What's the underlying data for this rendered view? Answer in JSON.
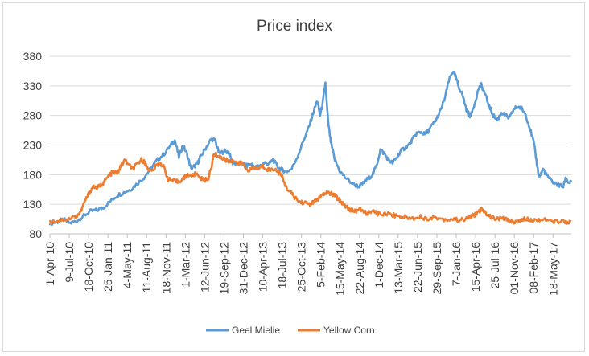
{
  "chart_data": {
    "type": "line",
    "title": "Price index",
    "xlabel": "",
    "ylabel": "",
    "ylim": [
      80,
      380
    ],
    "yticks": [
      80,
      130,
      180,
      230,
      280,
      330,
      380
    ],
    "grid": "horizontal",
    "legend_position": "bottom",
    "x_tick_labels": [
      "1-Apr-10",
      "9-Jul-10",
      "18-Oct-10",
      "25-Jan-11",
      "4-May-11",
      "11-Aug-11",
      "18-Nov-11",
      "1-Mar-12",
      "12-Jun-12",
      "19-Sep-12",
      "31-Dec-12",
      "10-Apr-13",
      "18-Jul-13",
      "25-Oct-13",
      "5-Feb-14",
      "15-May-14",
      "22-Aug-14",
      "1-Dec-14",
      "13-Mar-15",
      "22-Jun-15",
      "29-Sep-15",
      "7-Jan-16",
      "15-Apr-16",
      "25-Jul-16",
      "01-Nov-16",
      "08-Feb-17",
      "18-May-17"
    ],
    "x_end": "Sep-17",
    "series": [
      {
        "name": "Geel Mielie",
        "color": "#5b9bd5",
        "points": [
          [
            0,
            98
          ],
          [
            0.5,
            100
          ],
          [
            1,
            104
          ],
          [
            1.5,
            98
          ],
          [
            2,
            102
          ],
          [
            2.5,
            110
          ],
          [
            3,
            118
          ],
          [
            3.5,
            120
          ],
          [
            4,
            125
          ],
          [
            4.5,
            135
          ],
          [
            5,
            145
          ],
          [
            5.5,
            150
          ],
          [
            6,
            155
          ],
          [
            6.5,
            165
          ],
          [
            7,
            175
          ],
          [
            7.5,
            190
          ],
          [
            8,
            205
          ],
          [
            8.5,
            215
          ],
          [
            9,
            230
          ],
          [
            9.3,
            238
          ],
          [
            9.6,
            210
          ],
          [
            9.9,
            230
          ],
          [
            10.2,
            215
          ],
          [
            10.5,
            190
          ],
          [
            10.8,
            195
          ],
          [
            11,
            200
          ],
          [
            11.2,
            210
          ],
          [
            11.6,
            225
          ],
          [
            12,
            240
          ],
          [
            12.3,
            238
          ],
          [
            12.6,
            215
          ],
          [
            13,
            220
          ],
          [
            13.3,
            218
          ],
          [
            13.6,
            200
          ],
          [
            14,
            198
          ],
          [
            14.3,
            200
          ],
          [
            14.6,
            195
          ],
          [
            15,
            198
          ],
          [
            15.3,
            192
          ],
          [
            15.6,
            195
          ],
          [
            16,
            200
          ],
          [
            16.3,
            198
          ],
          [
            16.6,
            205
          ],
          [
            17,
            192
          ],
          [
            17.3,
            188
          ],
          [
            17.6,
            185
          ],
          [
            18,
            190
          ],
          [
            18.5,
            215
          ],
          [
            19,
            245
          ],
          [
            19.3,
            262
          ],
          [
            19.6,
            285
          ],
          [
            19.9,
            305
          ],
          [
            20.1,
            280
          ],
          [
            20.3,
            300
          ],
          [
            20.5,
            335
          ],
          [
            20.7,
            270
          ],
          [
            20.9,
            235
          ],
          [
            21.2,
            205
          ],
          [
            21.6,
            185
          ],
          [
            22,
            175
          ],
          [
            22.5,
            165
          ],
          [
            23,
            160
          ],
          [
            23.3,
            165
          ],
          [
            23.6,
            172
          ],
          [
            24,
            180
          ],
          [
            24.3,
            195
          ],
          [
            24.6,
            222
          ],
          [
            24.9,
            215
          ],
          [
            25.2,
            205
          ],
          [
            25.5,
            200
          ],
          [
            25.8,
            208
          ],
          [
            26.1,
            220
          ],
          [
            26.4,
            225
          ],
          [
            26.7,
            230
          ],
          [
            27,
            240
          ],
          [
            27.3,
            250
          ],
          [
            27.6,
            252
          ],
          [
            27.9,
            248
          ],
          [
            28.2,
            255
          ],
          [
            28.5,
            265
          ],
          [
            28.8,
            275
          ],
          [
            29.1,
            290
          ],
          [
            29.4,
            310
          ],
          [
            29.7,
            340
          ],
          [
            30,
            355
          ],
          [
            30.2,
            345
          ],
          [
            30.4,
            330
          ],
          [
            30.7,
            315
          ],
          [
            31,
            290
          ],
          [
            31.3,
            278
          ],
          [
            31.6,
            300
          ],
          [
            31.9,
            325
          ],
          [
            32.1,
            332
          ],
          [
            32.4,
            315
          ],
          [
            32.7,
            295
          ],
          [
            33,
            280
          ],
          [
            33.3,
            272
          ],
          [
            33.6,
            285
          ],
          [
            33.9,
            280
          ],
          [
            34.2,
            275
          ],
          [
            34.5,
            290
          ],
          [
            34.8,
            295
          ],
          [
            35.1,
            292
          ],
          [
            35.4,
            282
          ],
          [
            35.7,
            260
          ],
          [
            36,
            235
          ],
          [
            36.2,
            205
          ],
          [
            36.4,
            175
          ],
          [
            36.7,
            190
          ],
          [
            37,
            178
          ],
          [
            37.3,
            170
          ],
          [
            37.6,
            165
          ],
          [
            37.9,
            162
          ],
          [
            38.2,
            160
          ],
          [
            38.4,
            175
          ],
          [
            38.6,
            166
          ],
          [
            38.8,
            168
          ]
        ]
      },
      {
        "name": "Yellow Corn",
        "color": "#ed7d31",
        "points": [
          [
            0,
            100
          ],
          [
            0.5,
            102
          ],
          [
            1,
            104
          ],
          [
            1.5,
            106
          ],
          [
            2,
            110
          ],
          [
            2.3,
            118
          ],
          [
            2.6,
            135
          ],
          [
            2.9,
            148
          ],
          [
            3.2,
            160
          ],
          [
            3.5,
            158
          ],
          [
            3.8,
            162
          ],
          [
            4.1,
            170
          ],
          [
            4.4,
            178
          ],
          [
            4.7,
            185
          ],
          [
            5,
            182
          ],
          [
            5.3,
            195
          ],
          [
            5.6,
            205
          ],
          [
            5.9,
            195
          ],
          [
            6.2,
            190
          ],
          [
            6.5,
            198
          ],
          [
            6.8,
            205
          ],
          [
            7,
            202
          ],
          [
            7.3,
            190
          ],
          [
            7.6,
            185
          ],
          [
            7.9,
            195
          ],
          [
            8.2,
            200
          ],
          [
            8.5,
            192
          ],
          [
            8.8,
            172
          ],
          [
            9.1,
            170
          ],
          [
            9.4,
            168
          ],
          [
            9.7,
            170
          ],
          [
            10,
            175
          ],
          [
            10.3,
            180
          ],
          [
            10.6,
            178
          ],
          [
            10.9,
            182
          ],
          [
            11.2,
            175
          ],
          [
            11.5,
            170
          ],
          [
            11.8,
            175
          ],
          [
            12,
            190
          ],
          [
            12.2,
            215
          ],
          [
            12.5,
            212
          ],
          [
            12.8,
            208
          ],
          [
            13.1,
            205
          ],
          [
            13.4,
            202
          ],
          [
            13.7,
            205
          ],
          [
            14,
            198
          ],
          [
            14.3,
            200
          ],
          [
            14.6,
            190
          ],
          [
            14.9,
            188
          ],
          [
            15.2,
            192
          ],
          [
            15.5,
            190
          ],
          [
            15.8,
            195
          ],
          [
            16.1,
            190
          ],
          [
            16.4,
            188
          ],
          [
            16.7,
            190
          ],
          [
            17,
            185
          ],
          [
            17.3,
            175
          ],
          [
            17.6,
            158
          ],
          [
            17.9,
            150
          ],
          [
            18.2,
            142
          ],
          [
            18.5,
            135
          ],
          [
            18.8,
            133
          ],
          [
            19.1,
            132
          ],
          [
            19.4,
            130
          ],
          [
            19.7,
            135
          ],
          [
            20,
            140
          ],
          [
            20.3,
            145
          ],
          [
            20.6,
            150
          ],
          [
            20.9,
            148
          ],
          [
            21.2,
            145
          ],
          [
            21.5,
            138
          ],
          [
            21.8,
            132
          ],
          [
            22.1,
            125
          ],
          [
            22.4,
            120
          ],
          [
            22.7,
            118
          ],
          [
            23,
            122
          ],
          [
            23.3,
            118
          ],
          [
            23.6,
            115
          ],
          [
            24,
            118
          ],
          [
            24.3,
            115
          ],
          [
            24.6,
            113
          ],
          [
            25,
            115
          ],
          [
            25.5,
            112
          ],
          [
            26,
            110
          ],
          [
            26.5,
            108
          ],
          [
            27,
            106
          ],
          [
            27.5,
            110
          ],
          [
            28,
            105
          ],
          [
            28.5,
            108
          ],
          [
            29,
            106
          ],
          [
            29.5,
            104
          ],
          [
            30,
            105
          ],
          [
            30.5,
            103
          ],
          [
            31,
            105
          ],
          [
            31.3,
            110
          ],
          [
            31.6,
            112
          ],
          [
            31.9,
            118
          ],
          [
            32.1,
            121
          ],
          [
            32.4,
            116
          ],
          [
            32.7,
            110
          ],
          [
            33,
            107
          ],
          [
            33.3,
            105
          ],
          [
            33.6,
            106
          ],
          [
            34,
            104
          ],
          [
            34.3,
            102
          ],
          [
            34.6,
            100
          ],
          [
            34.9,
            102
          ],
          [
            35.2,
            104
          ],
          [
            35.5,
            106
          ],
          [
            35.8,
            104
          ],
          [
            36.1,
            103
          ],
          [
            36.5,
            105
          ],
          [
            37,
            103
          ],
          [
            37.5,
            100
          ],
          [
            38,
            102
          ],
          [
            38.4,
            100
          ],
          [
            38.8,
            101
          ]
        ]
      }
    ]
  }
}
